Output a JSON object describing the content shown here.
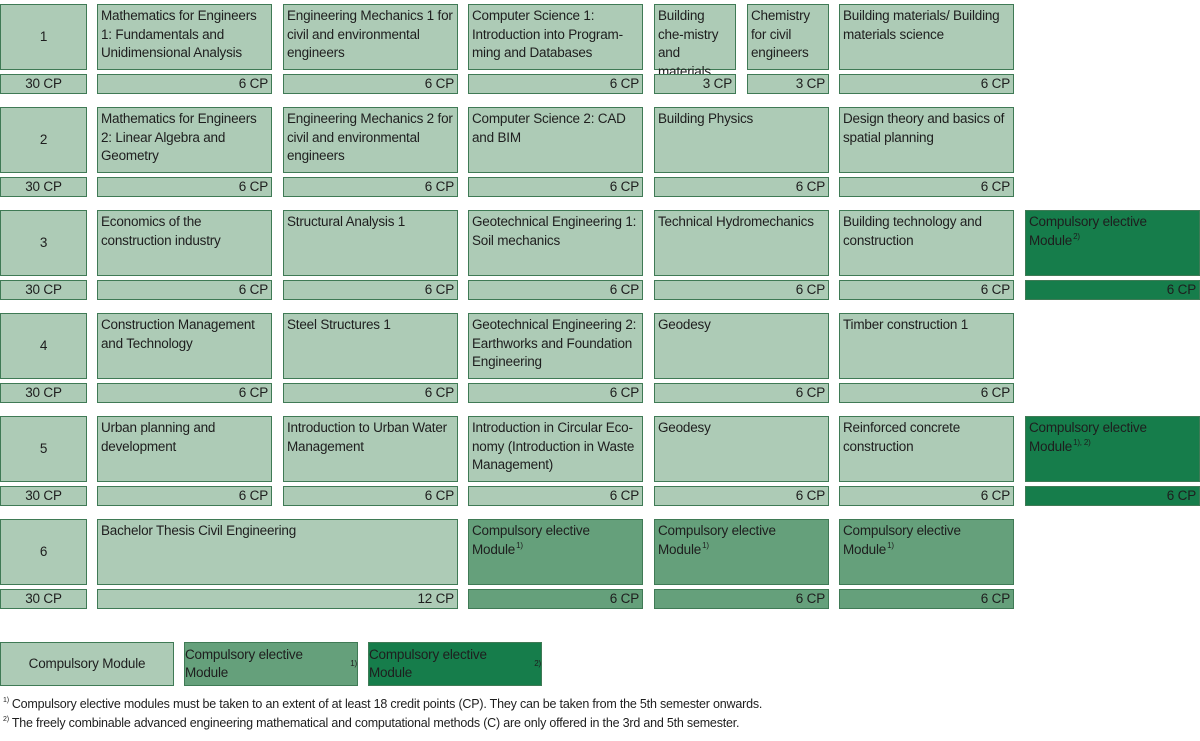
{
  "semesters": [
    {
      "number": "1",
      "total_cp": "30 CP",
      "modules": [
        {
          "title": "Mathematics for Engineers 1: Fundamentals and Unidimensional Analysis",
          "cp": "6 CP"
        },
        {
          "title": "Engineering Mechanics 1 for civil and environmental engineers",
          "cp": "6 CP"
        },
        {
          "title": "Computer Science 1: Introduction into Program-ming and Databases",
          "cp": "6 CP"
        },
        {
          "title": "Building che-mistry and materials",
          "cp": "3 CP"
        },
        {
          "title": "Chemistry for civil engineers",
          "cp": "3 CP"
        },
        {
          "title": "Building materials/ Building materials science",
          "cp": "6 CP"
        }
      ]
    },
    {
      "number": "2",
      "total_cp": "30 CP",
      "modules": [
        {
          "title": "Mathematics for Engineers 2: Linear Algebra and Geometry",
          "cp": "6 CP"
        },
        {
          "title": "Engineering Mechanics 2 for civil and environmental engineers",
          "cp": "6 CP"
        },
        {
          "title": "Computer Science 2: CAD and BIM",
          "cp": "6 CP"
        },
        {
          "title": "Building Physics",
          "cp": "6 CP"
        },
        {
          "title": "Design theory and basics of spatial planning",
          "cp": "6 CP"
        }
      ]
    },
    {
      "number": "3",
      "total_cp": "30 CP",
      "modules": [
        {
          "title": "Economics of the construction industry",
          "cp": "6 CP"
        },
        {
          "title": "Structural Analysis 1",
          "cp": "6 CP"
        },
        {
          "title": "Geotechnical Engineering 1: Soil mechanics",
          "cp": "6 CP"
        },
        {
          "title": "Technical Hydromechanics",
          "cp": "6 CP"
        },
        {
          "title": "Building technology and construction",
          "cp": "6 CP"
        },
        {
          "title": "Compulsory elective Module",
          "note": "2)",
          "cp": "6 CP"
        }
      ]
    },
    {
      "number": "4",
      "total_cp": "30 CP",
      "modules": [
        {
          "title": "Construction Management and Technology",
          "cp": "6 CP"
        },
        {
          "title": "Steel Structures 1",
          "cp": "6 CP"
        },
        {
          "title": "Geotechnical Engineering 2: Earthworks and Foundation Engineering",
          "cp": "6 CP"
        },
        {
          "title": "Geodesy",
          "cp": "6 CP"
        },
        {
          "title": "Timber construction 1",
          "cp": "6 CP"
        }
      ]
    },
    {
      "number": "5",
      "total_cp": "30 CP",
      "modules": [
        {
          "title": "Urban planning and development",
          "cp": "6 CP"
        },
        {
          "title": "Introduction to Urban Water Management",
          "cp": "6 CP"
        },
        {
          "title": "Introduction in Circular Eco-nomy (Introduction in Waste Management)",
          "cp": "6 CP"
        },
        {
          "title": "Geodesy",
          "cp": "6 CP"
        },
        {
          "title": "Reinforced concrete construction",
          "cp": "6 CP"
        },
        {
          "title": "Compulsory elective Module",
          "note": "1), 2)",
          "cp": "6 CP"
        }
      ]
    },
    {
      "number": "6",
      "total_cp": "30 CP",
      "modules": [
        {
          "title": "Bachelor Thesis Civil Engineering",
          "cp": "12 CP"
        },
        {
          "title": "Compulsory elective Module",
          "note": "1)",
          "cp": "6 CP"
        },
        {
          "title": "Compulsory elective Module",
          "note": "1)",
          "cp": "6 CP"
        },
        {
          "title": "Compulsory elective Module",
          "note": "1)",
          "cp": "6 CP"
        }
      ]
    }
  ],
  "legend": [
    {
      "label": "Compulsory Module",
      "note": ""
    },
    {
      "label": "Compulsory elective Module",
      "note": "1)"
    },
    {
      "label": "Compulsory elective Module",
      "note": "2)"
    }
  ],
  "footnotes": [
    {
      "mark": "1)",
      "text": "Compulsory elective modules must be taken to an extent of at least 18 credit points (CP). They can be taken from the 5th semester onwards."
    },
    {
      "mark": "2)",
      "text": "The freely combinable advanced engineering mathematical and computational methods (C) are only offered in the 3rd and 5th semester."
    }
  ],
  "colors": {
    "compulsory": "#adcbb6",
    "elective_1": "#65a07b",
    "elective_2": "#167d4b",
    "border": "#3f7a55"
  }
}
